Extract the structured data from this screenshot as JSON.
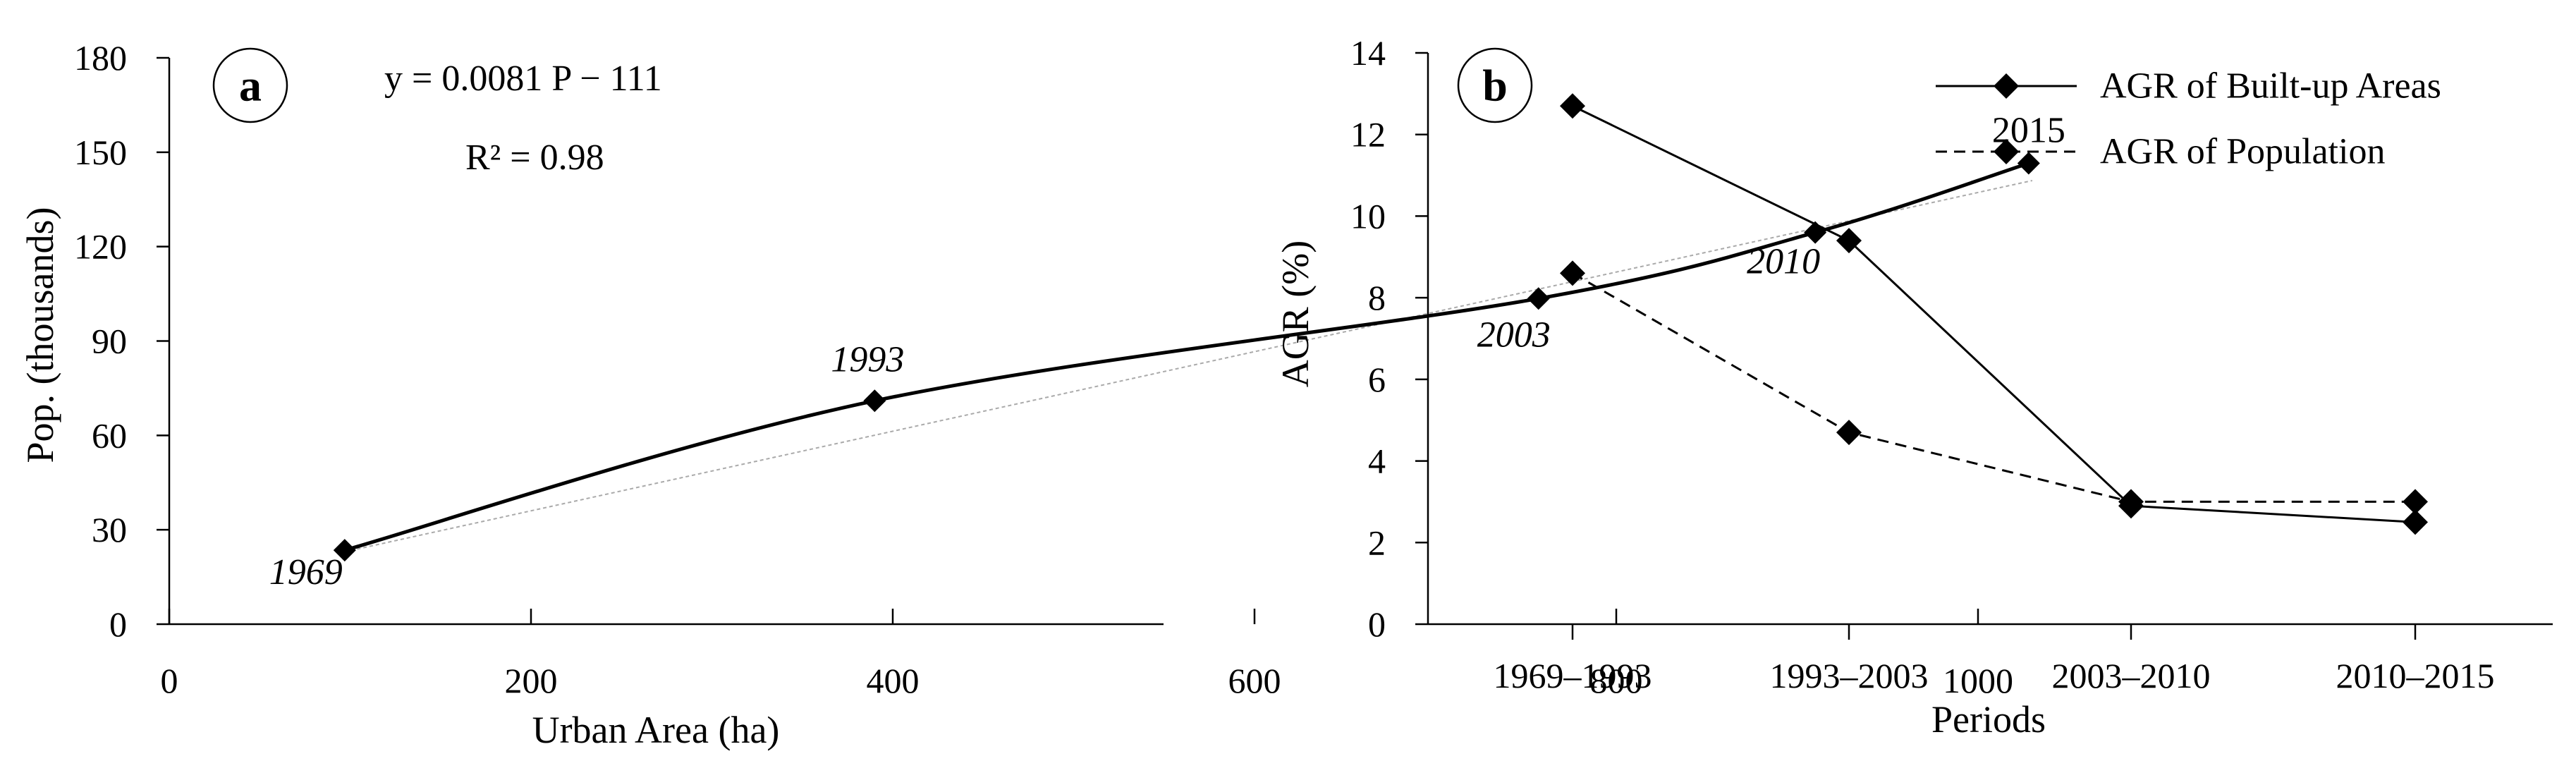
{
  "chart_data": [
    {
      "type": "line",
      "panel_label": "a",
      "xlabel": "Urban Area (ha)",
      "ylabel": "Pop. (thousands)",
      "xlim": [
        0,
        1100
      ],
      "ylim": [
        0,
        180
      ],
      "xticks": [
        0,
        200,
        400,
        600,
        800,
        1000
      ],
      "yticks": [
        0,
        30,
        60,
        90,
        120,
        150,
        180
      ],
      "points": [
        {
          "x": 97,
          "y": 23.5,
          "label": "1969"
        },
        {
          "x": 390,
          "y": 71,
          "label": "1993"
        },
        {
          "x": 757,
          "y": 103.5,
          "label": "2003"
        },
        {
          "x": 910,
          "y": 124.5,
          "label": "2010"
        },
        {
          "x": 1028,
          "y": 146.5,
          "label": "2015"
        }
      ],
      "trendline": {
        "equation": "y = 0.0081 P − 111",
        "r2": "R² = 0.98",
        "from": [
          97,
          23
        ],
        "to": [
          1030,
          141
        ]
      },
      "grid": false
    },
    {
      "type": "line",
      "panel_label": "b",
      "xlabel": "Periods",
      "ylabel": "AGR (%)",
      "ylim": [
        0,
        14
      ],
      "yticks": [
        0,
        2,
        4,
        6,
        8,
        10,
        12,
        14
      ],
      "categories": [
        "1969–1993",
        "1993–2003",
        "2003–2010",
        "2010–2015"
      ],
      "series": [
        {
          "name": "AGR of Built-up Areas",
          "values": [
            12.7,
            9.4,
            2.9,
            2.5
          ],
          "style": "solid"
        },
        {
          "name": "AGR of Population",
          "values": [
            8.6,
            4.7,
            3.0,
            3.0
          ],
          "style": "dashed"
        }
      ],
      "legend_position": "top-right",
      "grid": false
    }
  ]
}
